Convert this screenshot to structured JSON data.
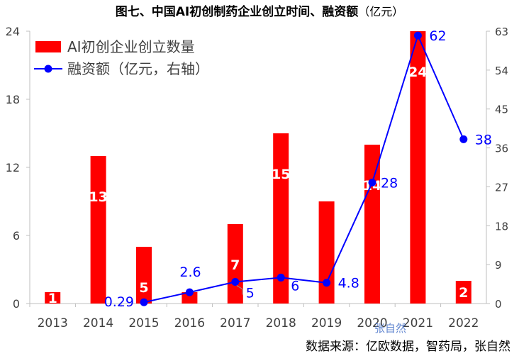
{
  "title": {
    "main": "图七、中国AI初创制药企业创立时间、融资额",
    "unit": "（亿元）"
  },
  "source_note": "数据来源：亿欧数据，智药局，张自然",
  "watermark": "张自然",
  "colors": {
    "bar": "#ff0000",
    "line": "#0000ff",
    "axis": "#bfbfbf",
    "tick": "#404040",
    "bar_label": "#ffffff",
    "line_label": "#0000ff"
  },
  "chart_data": {
    "type": "bar+line",
    "categories": [
      "2013",
      "2014",
      "2015",
      "2016",
      "2017",
      "2018",
      "2019",
      "2020",
      "2021",
      "2022"
    ],
    "series": [
      {
        "name": "AI初创企业创立数量",
        "type": "bar",
        "axis": "left",
        "values": [
          1,
          13,
          5,
          1,
          7,
          15,
          9,
          14,
          24,
          2
        ],
        "labels": [
          "1",
          "13",
          "5",
          "",
          "7",
          "15",
          "",
          "14",
          "24",
          "2"
        ]
      },
      {
        "name": "融资额（亿元，右轴）",
        "type": "line",
        "axis": "right",
        "values": [
          null,
          null,
          0.29,
          2.6,
          5,
          6,
          4.8,
          28,
          62,
          38
        ],
        "labels": [
          "",
          "",
          "0.29",
          "2.6",
          "5",
          "6",
          "4.8",
          "28",
          "62",
          "38"
        ]
      }
    ],
    "y_left": {
      "min": 0,
      "max": 24,
      "ticks": [
        "0",
        "6",
        "12",
        "18",
        "24"
      ]
    },
    "y_right": {
      "min": 0,
      "max": 63,
      "ticks": [
        "0",
        "9",
        "18",
        "27",
        "36",
        "45",
        "54",
        "63"
      ]
    },
    "legend": [
      "AI初创企业创立数量",
      "融资额（亿元，右轴）"
    ],
    "legend_position": "top-left"
  }
}
